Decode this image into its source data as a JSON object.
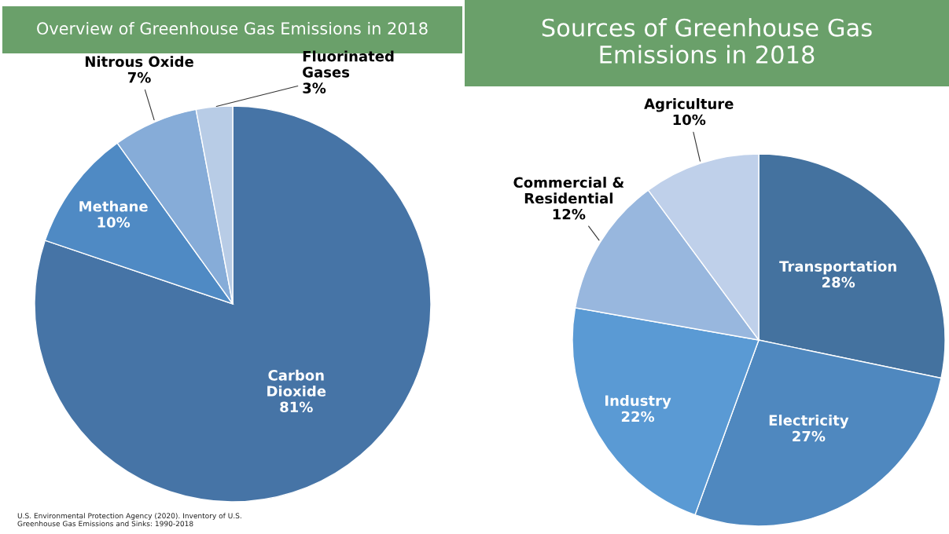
{
  "chart_data": [
    {
      "type": "pie",
      "title": "Overview of Greenhouse Gas Emissions in 2018",
      "categories": [
        "Carbon\nDioxide",
        "Methane",
        "Nitrous Oxide",
        "Fluorinated\nGases"
      ],
      "values": [
        81,
        10,
        7,
        3
      ],
      "value_labels": [
        "81%",
        "10%",
        "7%",
        "3%"
      ],
      "colors": [
        "#4674a6",
        "#4f8ac4",
        "#86acd8",
        "#b8cce6"
      ],
      "annotations": [
        "U.S. Environmental Protection Agency (2020). Inventory of U.S.\nGreenhouse Gas Emissions and Sinks: 1990-2018"
      ]
    },
    {
      "type": "pie",
      "title": "Sources of Greenhouse Gas\nEmissions in 2018",
      "categories": [
        "Transportation",
        "Electricity",
        "Industry",
        "Commercial &\nResidential",
        "Agriculture"
      ],
      "values": [
        28,
        27,
        22,
        12,
        10
      ],
      "value_labels": [
        "28%",
        "27%",
        "22%",
        "12%",
        "10%"
      ],
      "colors": [
        "#44729f",
        "#4f88bf",
        "#5a9ad4",
        "#98b7de",
        "#bfd0ea"
      ]
    }
  ]
}
